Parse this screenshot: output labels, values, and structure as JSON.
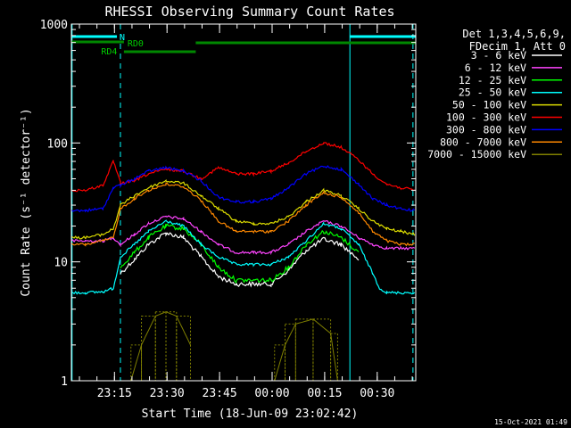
{
  "chart_data": {
    "type": "line",
    "title": "RHESSI Observing Summary Count Rates",
    "xlabel": "Start Time (18-Jun-09 23:02:42)",
    "ylabel": "Count Rate (s⁻¹ detector⁻¹)",
    "y_scale": "log",
    "xlim_minutes": [
      0,
      98.3
    ],
    "ylim": [
      1,
      1000
    ],
    "x_ticks": [
      {
        "label": "23:15",
        "minutes": 12.3
      },
      {
        "label": "23:30",
        "minutes": 27.3
      },
      {
        "label": "23:45",
        "minutes": 42.3
      },
      {
        "label": "00:00",
        "minutes": 57.3
      },
      {
        "label": "00:15",
        "minutes": 72.3
      },
      {
        "label": "00:30",
        "minutes": 87.3
      }
    ],
    "y_ticks": [
      {
        "label": "1",
        "value": 1
      },
      {
        "label": "10",
        "value": 10
      },
      {
        "label": "100",
        "value": 100
      },
      {
        "label": "1000",
        "value": 1000
      }
    ],
    "legend_header": [
      "Det 1,3,4,5,6,9,",
      "FDecim 1, Att 0"
    ],
    "series": [
      {
        "name": "3 - 6 keV",
        "color": "#ffffff",
        "x": [
          0,
          9,
          12,
          14,
          18,
          22,
          27,
          32,
          37,
          42,
          47,
          52,
          57,
          62,
          67,
          72,
          77,
          82,
          86,
          88
        ],
        "y": [
          null,
          null,
          null,
          8,
          10.5,
          14,
          17.5,
          16,
          11,
          7.5,
          6.5,
          6.5,
          6.5,
          8.5,
          12.5,
          15.5,
          14,
          10.5,
          null,
          null
        ]
      },
      {
        "name": "6 - 12 keV",
        "color": "#ff44ff",
        "x": [
          0,
          4,
          9,
          12,
          14,
          18,
          22,
          27,
          32,
          37,
          42,
          47,
          52,
          57,
          62,
          67,
          72,
          77,
          82,
          86,
          90,
          94,
          98
        ],
        "y": [
          15,
          15,
          15,
          16,
          14,
          17,
          21,
          24,
          23,
          18,
          14,
          12,
          12,
          12,
          14,
          18,
          22,
          20,
          16,
          14,
          13,
          13,
          13
        ]
      },
      {
        "name": "12 - 25 keV",
        "color": "#00ff00",
        "x": [
          0,
          9,
          12,
          14,
          18,
          22,
          27,
          32,
          37,
          42,
          47,
          52,
          57,
          62,
          67,
          72,
          77,
          82,
          86,
          88
        ],
        "y": [
          null,
          null,
          null,
          9,
          12,
          16,
          20,
          19,
          14,
          9,
          7,
          7,
          7,
          9,
          14,
          18,
          16,
          12,
          null,
          null
        ]
      },
      {
        "name": "25 - 50 keV",
        "color": "#00ffff",
        "x": [
          0,
          4,
          9,
          12,
          14,
          18,
          22,
          27,
          32,
          37,
          42,
          47,
          52,
          57,
          62,
          67,
          72,
          77,
          82,
          86,
          88,
          90,
          94,
          98
        ],
        "y": [
          5.5,
          5.5,
          5.6,
          6,
          11,
          14,
          18,
          22,
          20,
          14,
          11,
          9.5,
          9.5,
          9.5,
          11,
          15,
          21,
          19,
          14,
          8,
          6,
          5.5,
          5.5,
          5.5
        ]
      },
      {
        "name": "50 - 100 keV",
        "color": "#dddd00",
        "x": [
          0,
          4,
          9,
          12,
          14,
          18,
          22,
          27,
          32,
          37,
          42,
          47,
          52,
          57,
          62,
          67,
          72,
          77,
          82,
          86,
          90,
          94,
          98
        ],
        "y": [
          16,
          16,
          17,
          19,
          30,
          36,
          42,
          48,
          46,
          36,
          28,
          22,
          21,
          21,
          24,
          32,
          40,
          36,
          28,
          22,
          19,
          18,
          17
        ]
      },
      {
        "name": "100 - 300 keV",
        "color": "#ff0000",
        "x": [
          0,
          4,
          9,
          12,
          14,
          18,
          22,
          27,
          32,
          37,
          42,
          47,
          52,
          57,
          62,
          67,
          72,
          77,
          82,
          86,
          90,
          94,
          98
        ],
        "y": [
          40,
          40,
          44,
          70,
          46,
          48,
          55,
          60,
          58,
          50,
          62,
          55,
          55,
          58,
          68,
          85,
          100,
          92,
          72,
          55,
          45,
          42,
          40
        ]
      },
      {
        "name": "300 - 800 keV",
        "color": "#0000ff",
        "x": [
          0,
          4,
          9,
          12,
          14,
          18,
          22,
          27,
          32,
          37,
          42,
          47,
          52,
          57,
          62,
          67,
          72,
          77,
          82,
          86,
          90,
          94,
          98
        ],
        "y": [
          27,
          27,
          28,
          42,
          44,
          50,
          58,
          62,
          58,
          48,
          35,
          32,
          32,
          34,
          42,
          55,
          64,
          60,
          45,
          34,
          30,
          28,
          27
        ]
      },
      {
        "name": "800 - 7000 keV",
        "color": "#ff8800",
        "x": [
          0,
          4,
          9,
          12,
          14,
          18,
          22,
          27,
          32,
          37,
          42,
          47,
          52,
          57,
          62,
          67,
          72,
          77,
          82,
          86,
          90,
          94,
          98
        ],
        "y": [
          14,
          14,
          15,
          16,
          28,
          34,
          40,
          45,
          43,
          33,
          22,
          18,
          18,
          18,
          22,
          30,
          38,
          35,
          26,
          18,
          15,
          14,
          14
        ]
      },
      {
        "name": "7000 - 15000 keV",
        "color": "#808000",
        "x": [
          0,
          14,
          17,
          20,
          24,
          27,
          30,
          34,
          36,
          56,
          58,
          61,
          64,
          69,
          74,
          76,
          98
        ],
        "y": [
          null,
          null,
          1,
          2,
          3.5,
          3.8,
          3.5,
          2,
          null,
          null,
          1,
          2,
          3,
          3.3,
          2.5,
          1,
          null
        ]
      }
    ],
    "flags": {
      "n_label": "N",
      "rd0_label": "RD0",
      "rd4_label": "RD4"
    },
    "timestamp": "15-Oct-2021 01:49"
  }
}
